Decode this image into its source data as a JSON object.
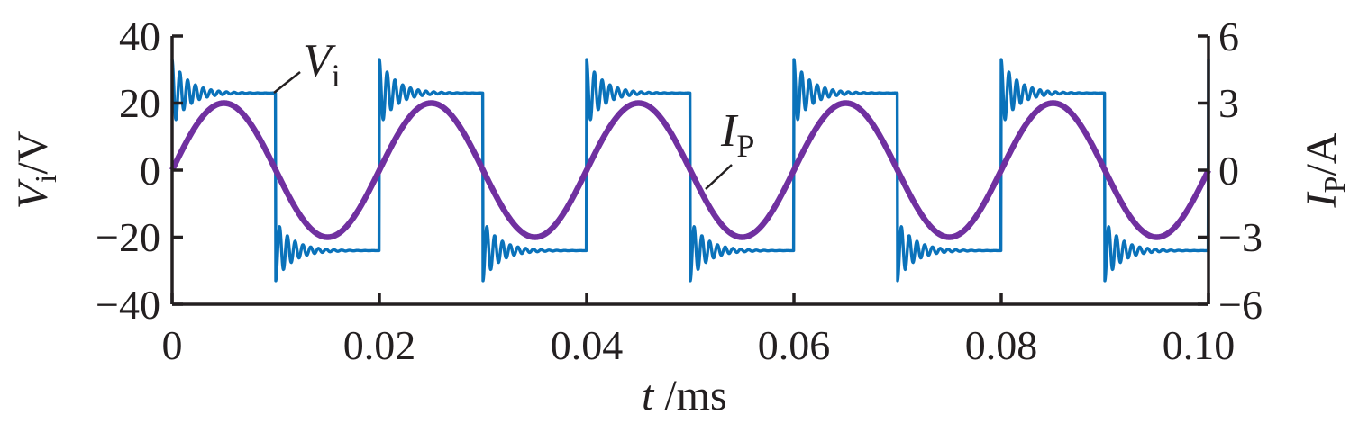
{
  "chart_data": {
    "type": "line",
    "xlabel": {
      "symbol": "t",
      "unit": " /ms"
    },
    "ylabel_left": {
      "symbol": "V",
      "sub": "i",
      "unit": "/V"
    },
    "ylabel_right": {
      "symbol": "I",
      "sub": "P",
      "unit": "/A"
    },
    "xlim": [
      0,
      0.1
    ],
    "ylim_left": [
      -40,
      40
    ],
    "ylim_right": [
      -6,
      6
    ],
    "x_ticks": [
      "0",
      "0.02",
      "0.04",
      "0.06",
      "0.08",
      "0.10"
    ],
    "y_ticks_left": [
      "40",
      "20",
      "0",
      "−20",
      "−40"
    ],
    "y_ticks_right": [
      "6",
      "3",
      "0",
      "−3",
      "−6"
    ],
    "grid": false,
    "series": [
      {
        "name": "Vi",
        "label": {
          "symbol": "V",
          "sub": "i"
        },
        "axis": "left",
        "color": "#0a72ba",
        "waveform": "square with ringing",
        "period_ms": 0.02,
        "high": 23,
        "low": -24,
        "overshoot_peak": 33,
        "undershoot_peak": -33
      },
      {
        "name": "IP",
        "label": {
          "symbol": "I",
          "sub": "P"
        },
        "axis": "right",
        "color": "#7030a0",
        "waveform": "sine",
        "period_ms": 0.02,
        "amplitude": 3
      }
    ]
  }
}
